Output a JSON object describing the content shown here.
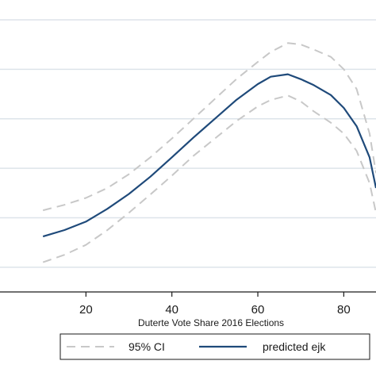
{
  "chart_data": {
    "type": "line",
    "xlabel": "Duterte Vote Share 2016 Elections",
    "ylabel": "",
    "xlim": [
      0,
      87.5
    ],
    "ylim": [
      0,
      5.9
    ],
    "xticks": [
      20,
      40,
      60,
      80
    ],
    "yticks": [
      0.5,
      1.5,
      2.5,
      3.5,
      4.5,
      5.5
    ],
    "grid": true,
    "legend_position": "bottom",
    "x": [
      10,
      15,
      20,
      25,
      30,
      35,
      40,
      45,
      50,
      55,
      60,
      63,
      67,
      70,
      73,
      77,
      80,
      83,
      86,
      87.5
    ],
    "series": [
      {
        "name": "95% CI",
        "style": "dashed",
        "color": "#c8c8c8",
        "values": [
          1.65,
          1.76,
          1.9,
          2.1,
          2.38,
          2.72,
          3.1,
          3.5,
          3.9,
          4.3,
          4.65,
          4.85,
          5.03,
          5.0,
          4.9,
          4.75,
          4.5,
          4.1,
          3.2,
          2.4
        ]
      },
      {
        "name": "95% CI",
        "style": "dashed",
        "color": "#c8c8c8",
        "values": [
          0.6,
          0.75,
          0.95,
          1.25,
          1.6,
          1.97,
          2.35,
          2.75,
          3.1,
          3.45,
          3.75,
          3.88,
          3.97,
          3.85,
          3.65,
          3.42,
          3.2,
          2.85,
          2.2,
          1.6
        ]
      },
      {
        "name": "predicted ejk",
        "style": "solid",
        "color": "#1f4a7a",
        "values": [
          1.12,
          1.25,
          1.42,
          1.68,
          1.98,
          2.33,
          2.72,
          3.12,
          3.5,
          3.88,
          4.2,
          4.35,
          4.4,
          4.3,
          4.18,
          3.98,
          3.72,
          3.35,
          2.72,
          2.1
        ]
      }
    ],
    "legend": [
      {
        "label": "95% CI",
        "style": "dashed",
        "color": "#c8c8c8"
      },
      {
        "label": "predicted ejk",
        "style": "solid",
        "color": "#1f4a7a"
      }
    ]
  }
}
